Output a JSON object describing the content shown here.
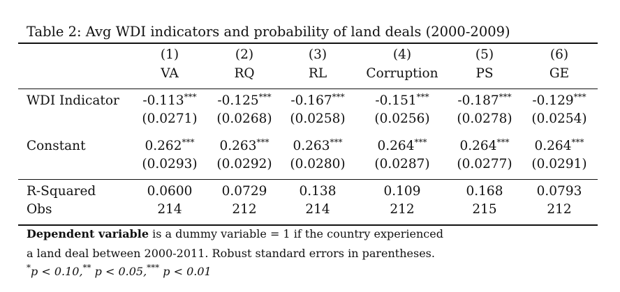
{
  "caption": "Table 2: Avg WDI indicators and probability of land deals (2000-2009)",
  "columns": [
    {
      "num": "(1)",
      "label": "VA"
    },
    {
      "num": "(2)",
      "label": "RQ"
    },
    {
      "num": "(3)",
      "label": "RL"
    },
    {
      "num": "(4)",
      "label": "Corruption"
    },
    {
      "num": "(5)",
      "label": "PS"
    },
    {
      "num": "(6)",
      "label": "GE"
    }
  ],
  "rows": [
    {
      "label": "WDI Indicator",
      "coef": [
        "-0.113",
        "-0.125",
        "-0.167",
        "-0.151",
        "-0.187",
        "-0.129"
      ],
      "stars": [
        "***",
        "***",
        "***",
        "***",
        "***",
        "***"
      ],
      "se": [
        "(0.0271)",
        "(0.0268)",
        "(0.0258)",
        "(0.0256)",
        "(0.0278)",
        "(0.0254)"
      ]
    },
    {
      "label": "Constant",
      "coef": [
        "0.262",
        "0.263",
        "0.263",
        "0.264",
        "0.264",
        "0.264"
      ],
      "stars": [
        "***",
        "***",
        "***",
        "***",
        "***",
        "***"
      ],
      "se": [
        "(0.0293)",
        "(0.0292)",
        "(0.0280)",
        "(0.0287)",
        "(0.0277)",
        "(0.0291)"
      ]
    }
  ],
  "stats": [
    {
      "label": "R-Squared",
      "values": [
        "0.0600",
        "0.0729",
        "0.138",
        "0.109",
        "0.168",
        "0.0793"
      ]
    },
    {
      "label": "Obs",
      "values": [
        "214",
        "212",
        "214",
        "212",
        "215",
        "212"
      ]
    }
  ],
  "notes": {
    "line1_bold": "Dependent variable",
    "line1_rest": " is a dummy variable = 1 if the country experienced",
    "line2": "a land deal between 2000-2011. Robust standard errors in parentheses.",
    "sig_p1": "p < 0.10,",
    "sig_p2": "p < 0.05,",
    "sig_p3": "p < 0.01",
    "sig_s1": "*",
    "sig_s2": "**",
    "sig_s3": "***"
  }
}
